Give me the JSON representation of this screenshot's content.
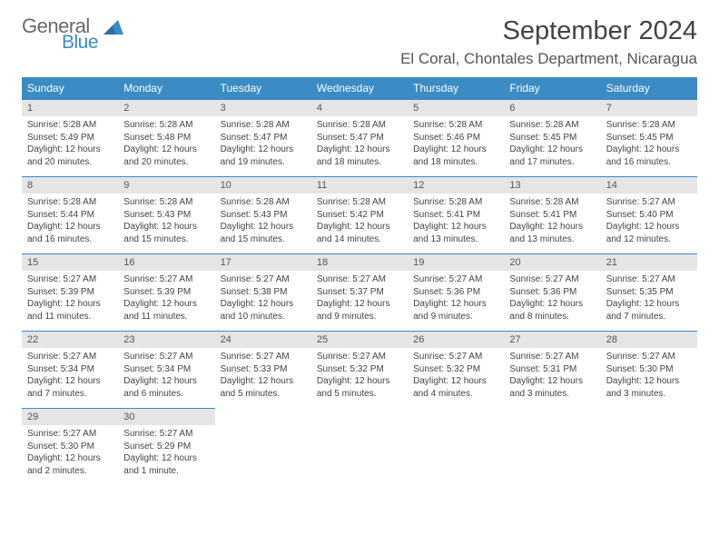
{
  "logo": {
    "general": "General",
    "blue": "Blue"
  },
  "title": "September 2024",
  "location": "El Coral, Chontales Department, Nicaragua",
  "header_bg": "#3b8bc4",
  "header_text": "#ffffff",
  "daynum_bg": "#e5e5e5",
  "border_color": "#3b8bc4",
  "days_of_week": [
    "Sunday",
    "Monday",
    "Tuesday",
    "Wednesday",
    "Thursday",
    "Friday",
    "Saturday"
  ],
  "weeks": [
    [
      {
        "n": "1",
        "sr": "Sunrise: 5:28 AM",
        "ss": "Sunset: 5:49 PM",
        "dl": "Daylight: 12 hours and 20 minutes."
      },
      {
        "n": "2",
        "sr": "Sunrise: 5:28 AM",
        "ss": "Sunset: 5:48 PM",
        "dl": "Daylight: 12 hours and 20 minutes."
      },
      {
        "n": "3",
        "sr": "Sunrise: 5:28 AM",
        "ss": "Sunset: 5:47 PM",
        "dl": "Daylight: 12 hours and 19 minutes."
      },
      {
        "n": "4",
        "sr": "Sunrise: 5:28 AM",
        "ss": "Sunset: 5:47 PM",
        "dl": "Daylight: 12 hours and 18 minutes."
      },
      {
        "n": "5",
        "sr": "Sunrise: 5:28 AM",
        "ss": "Sunset: 5:46 PM",
        "dl": "Daylight: 12 hours and 18 minutes."
      },
      {
        "n": "6",
        "sr": "Sunrise: 5:28 AM",
        "ss": "Sunset: 5:45 PM",
        "dl": "Daylight: 12 hours and 17 minutes."
      },
      {
        "n": "7",
        "sr": "Sunrise: 5:28 AM",
        "ss": "Sunset: 5:45 PM",
        "dl": "Daylight: 12 hours and 16 minutes."
      }
    ],
    [
      {
        "n": "8",
        "sr": "Sunrise: 5:28 AM",
        "ss": "Sunset: 5:44 PM",
        "dl": "Daylight: 12 hours and 16 minutes."
      },
      {
        "n": "9",
        "sr": "Sunrise: 5:28 AM",
        "ss": "Sunset: 5:43 PM",
        "dl": "Daylight: 12 hours and 15 minutes."
      },
      {
        "n": "10",
        "sr": "Sunrise: 5:28 AM",
        "ss": "Sunset: 5:43 PM",
        "dl": "Daylight: 12 hours and 15 minutes."
      },
      {
        "n": "11",
        "sr": "Sunrise: 5:28 AM",
        "ss": "Sunset: 5:42 PM",
        "dl": "Daylight: 12 hours and 14 minutes."
      },
      {
        "n": "12",
        "sr": "Sunrise: 5:28 AM",
        "ss": "Sunset: 5:41 PM",
        "dl": "Daylight: 12 hours and 13 minutes."
      },
      {
        "n": "13",
        "sr": "Sunrise: 5:28 AM",
        "ss": "Sunset: 5:41 PM",
        "dl": "Daylight: 12 hours and 13 minutes."
      },
      {
        "n": "14",
        "sr": "Sunrise: 5:27 AM",
        "ss": "Sunset: 5:40 PM",
        "dl": "Daylight: 12 hours and 12 minutes."
      }
    ],
    [
      {
        "n": "15",
        "sr": "Sunrise: 5:27 AM",
        "ss": "Sunset: 5:39 PM",
        "dl": "Daylight: 12 hours and 11 minutes."
      },
      {
        "n": "16",
        "sr": "Sunrise: 5:27 AM",
        "ss": "Sunset: 5:39 PM",
        "dl": "Daylight: 12 hours and 11 minutes."
      },
      {
        "n": "17",
        "sr": "Sunrise: 5:27 AM",
        "ss": "Sunset: 5:38 PM",
        "dl": "Daylight: 12 hours and 10 minutes."
      },
      {
        "n": "18",
        "sr": "Sunrise: 5:27 AM",
        "ss": "Sunset: 5:37 PM",
        "dl": "Daylight: 12 hours and 9 minutes."
      },
      {
        "n": "19",
        "sr": "Sunrise: 5:27 AM",
        "ss": "Sunset: 5:36 PM",
        "dl": "Daylight: 12 hours and 9 minutes."
      },
      {
        "n": "20",
        "sr": "Sunrise: 5:27 AM",
        "ss": "Sunset: 5:36 PM",
        "dl": "Daylight: 12 hours and 8 minutes."
      },
      {
        "n": "21",
        "sr": "Sunrise: 5:27 AM",
        "ss": "Sunset: 5:35 PM",
        "dl": "Daylight: 12 hours and 7 minutes."
      }
    ],
    [
      {
        "n": "22",
        "sr": "Sunrise: 5:27 AM",
        "ss": "Sunset: 5:34 PM",
        "dl": "Daylight: 12 hours and 7 minutes."
      },
      {
        "n": "23",
        "sr": "Sunrise: 5:27 AM",
        "ss": "Sunset: 5:34 PM",
        "dl": "Daylight: 12 hours and 6 minutes."
      },
      {
        "n": "24",
        "sr": "Sunrise: 5:27 AM",
        "ss": "Sunset: 5:33 PM",
        "dl": "Daylight: 12 hours and 5 minutes."
      },
      {
        "n": "25",
        "sr": "Sunrise: 5:27 AM",
        "ss": "Sunset: 5:32 PM",
        "dl": "Daylight: 12 hours and 5 minutes."
      },
      {
        "n": "26",
        "sr": "Sunrise: 5:27 AM",
        "ss": "Sunset: 5:32 PM",
        "dl": "Daylight: 12 hours and 4 minutes."
      },
      {
        "n": "27",
        "sr": "Sunrise: 5:27 AM",
        "ss": "Sunset: 5:31 PM",
        "dl": "Daylight: 12 hours and 3 minutes."
      },
      {
        "n": "28",
        "sr": "Sunrise: 5:27 AM",
        "ss": "Sunset: 5:30 PM",
        "dl": "Daylight: 12 hours and 3 minutes."
      }
    ],
    [
      {
        "n": "29",
        "sr": "Sunrise: 5:27 AM",
        "ss": "Sunset: 5:30 PM",
        "dl": "Daylight: 12 hours and 2 minutes."
      },
      {
        "n": "30",
        "sr": "Sunrise: 5:27 AM",
        "ss": "Sunset: 5:29 PM",
        "dl": "Daylight: 12 hours and 1 minute."
      },
      null,
      null,
      null,
      null,
      null
    ]
  ]
}
